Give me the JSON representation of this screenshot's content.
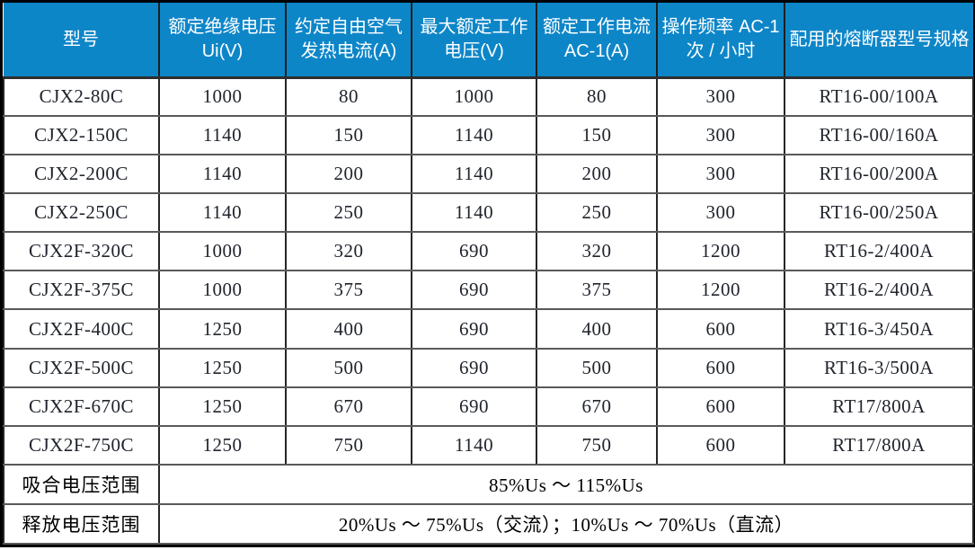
{
  "colors": {
    "header_bg": "#0d86c8",
    "header_text": "#ffffff",
    "grid_horizontal": "#595959",
    "grid_vertical": "#262626",
    "outer_border": "#000000",
    "body_text": "#20242c"
  },
  "table": {
    "columns": [
      {
        "label": "型号"
      },
      {
        "label": "额定绝缘电压 Ui(V)"
      },
      {
        "label": "约定自由空气发热电流(A)"
      },
      {
        "label": "最大额定工作电压(V)"
      },
      {
        "label": "额定工作电流 AC-1(A)"
      },
      {
        "label": "操作频率 AC-1 次 / 小时"
      },
      {
        "label": "配用的熔断器型号规格"
      }
    ],
    "rows": [
      {
        "model": "CJX2-80C",
        "values": [
          "1000",
          "80",
          "1000",
          "80",
          "300",
          "RT16-00/100A"
        ]
      },
      {
        "model": "CJX2-150C",
        "values": [
          "1140",
          "150",
          "1140",
          "150",
          "300",
          "RT16-00/160A"
        ]
      },
      {
        "model": "CJX2-200C",
        "values": [
          "1140",
          "200",
          "1140",
          "200",
          "300",
          "RT16-00/200A"
        ]
      },
      {
        "model": "CJX2-250C",
        "values": [
          "1140",
          "250",
          "1140",
          "250",
          "300",
          "RT16-00/250A"
        ]
      },
      {
        "model": "CJX2F-320C",
        "values": [
          "1000",
          "320",
          "690",
          "320",
          "1200",
          "RT16-2/400A"
        ]
      },
      {
        "model": "CJX2F-375C",
        "values": [
          "1000",
          "375",
          "690",
          "375",
          "1200",
          "RT16-2/400A"
        ]
      },
      {
        "model": "CJX2F-400C",
        "values": [
          "1250",
          "400",
          "690",
          "400",
          "600",
          "RT16-3/450A"
        ]
      },
      {
        "model": "CJX2F-500C",
        "values": [
          "1250",
          "500",
          "690",
          "500",
          "600",
          "RT16-3/500A"
        ]
      },
      {
        "model": "CJX2F-670C",
        "values": [
          "1250",
          "670",
          "690",
          "670",
          "600",
          "RT17/800A"
        ]
      },
      {
        "model": "CJX2F-750C",
        "values": [
          "1250",
          "750",
          "1140",
          "750",
          "600",
          "RT17/800A"
        ]
      }
    ],
    "footer_rows": [
      {
        "label": "吸合电压范围",
        "value": "85%Us ～ 115%Us"
      },
      {
        "label": "释放电压范围",
        "value": "20%Us ～ 75%Us（交流）；10%Us ～ 70%Us（直流）"
      }
    ]
  }
}
